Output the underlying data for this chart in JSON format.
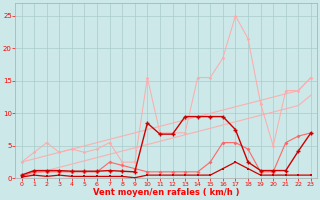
{
  "x": [
    0,
    1,
    2,
    3,
    4,
    5,
    6,
    7,
    8,
    9,
    10,
    11,
    12,
    13,
    14,
    15,
    16,
    17,
    18,
    19,
    20,
    21,
    22,
    23
  ],
  "line_pink_spiky": [
    2.5,
    4.0,
    5.5,
    4.0,
    4.5,
    4.0,
    4.5,
    5.5,
    2.5,
    2.5,
    15.5,
    7.0,
    7.0,
    7.0,
    15.5,
    15.5,
    18.5,
    25.0,
    21.5,
    11.5,
    5.0,
    13.5,
    13.5,
    15.5
  ],
  "line_diag_hi": [
    2.5,
    3.0,
    3.5,
    4.0,
    4.5,
    5.0,
    5.5,
    6.0,
    6.5,
    7.0,
    7.5,
    8.0,
    8.5,
    9.0,
    9.5,
    10.0,
    10.5,
    11.0,
    11.5,
    12.0,
    12.5,
    13.0,
    13.5,
    15.5
  ],
  "line_diag_lo": [
    0.2,
    0.7,
    1.2,
    1.7,
    2.2,
    2.7,
    3.2,
    3.7,
    4.2,
    4.7,
    5.2,
    5.7,
    6.2,
    6.7,
    7.2,
    7.7,
    8.2,
    8.7,
    9.2,
    9.7,
    10.2,
    10.7,
    11.2,
    12.8
  ],
  "line_dark_main": [
    0.5,
    1.2,
    1.2,
    1.2,
    1.1,
    1.1,
    1.1,
    1.2,
    1.1,
    1.0,
    8.5,
    6.8,
    6.8,
    9.5,
    9.5,
    9.5,
    9.5,
    7.5,
    2.5,
    1.2,
    1.2,
    1.2,
    4.2,
    7.0
  ],
  "line_dark_low": [
    0.2,
    0.5,
    0.3,
    0.5,
    0.3,
    0.3,
    0.3,
    0.3,
    0.3,
    0.1,
    0.5,
    0.5,
    0.5,
    0.5,
    0.5,
    0.5,
    1.5,
    2.5,
    1.5,
    0.5,
    0.5,
    0.5,
    0.5,
    0.5
  ],
  "line_med_pink": [
    0.3,
    1.0,
    1.0,
    1.0,
    1.0,
    1.0,
    1.0,
    2.5,
    2.0,
    1.5,
    1.0,
    1.0,
    1.0,
    1.0,
    1.0,
    2.5,
    5.5,
    5.5,
    4.5,
    1.0,
    1.0,
    5.5,
    6.5,
    7.0
  ],
  "bg_color": "#cce8e8",
  "grid_color": "#aacccc",
  "xlabel": "Vent moyen/en rafales ( km/h )",
  "ylim": [
    0,
    27
  ],
  "xlim": [
    -0.5,
    23.5
  ],
  "yticks": [
    0,
    5,
    10,
    15,
    20,
    25
  ],
  "xticks": [
    0,
    1,
    2,
    3,
    4,
    5,
    6,
    7,
    8,
    9,
    10,
    11,
    12,
    13,
    14,
    15,
    16,
    17,
    18,
    19,
    20,
    21,
    22,
    23
  ]
}
